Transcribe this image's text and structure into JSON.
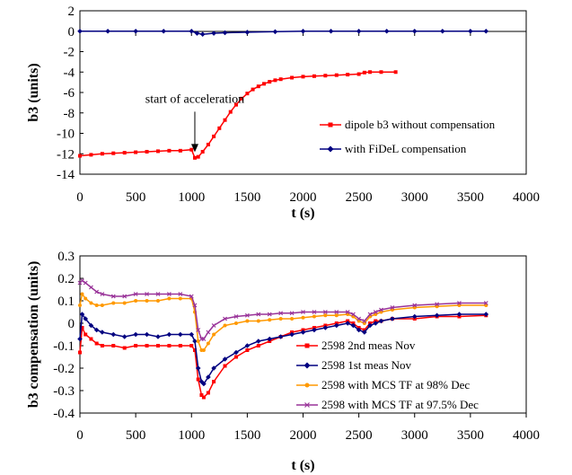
{
  "chart_data": [
    {
      "type": "line",
      "title": "",
      "xlabel": "t (s)",
      "ylabel": "b3 (units)",
      "xlim": [
        0,
        4000
      ],
      "ylim": [
        -14,
        2
      ],
      "xticks": [
        0,
        500,
        1000,
        1500,
        2000,
        2500,
        3000,
        3500,
        4000
      ],
      "yticks": [
        2,
        0,
        -2,
        -4,
        -6,
        -8,
        -10,
        -12,
        -14
      ],
      "grid": false,
      "legend_position": "right",
      "annotations": [
        {
          "text": "start of acceleration",
          "x": 1030,
          "y": -12.1
        }
      ],
      "series": [
        {
          "name": "dipole b3 without compensation",
          "color": "#ff0000",
          "marker": "square",
          "x": [
            0,
            100,
            200,
            300,
            400,
            500,
            600,
            700,
            800,
            900,
            1000,
            1030,
            1060,
            1100,
            1150,
            1200,
            1250,
            1300,
            1350,
            1400,
            1450,
            1500,
            1550,
            1600,
            1650,
            1700,
            1750,
            1800,
            1900,
            2000,
            2100,
            2200,
            2300,
            2400,
            2500,
            2550,
            2600,
            2700,
            2830
          ],
          "y": [
            -12.2,
            -12.1,
            -12.0,
            -11.95,
            -11.9,
            -11.85,
            -11.8,
            -11.75,
            -11.7,
            -11.7,
            -11.6,
            -12.4,
            -12.3,
            -11.8,
            -11.1,
            -10.3,
            -9.5,
            -8.7,
            -7.9,
            -7.2,
            -6.6,
            -6.1,
            -5.7,
            -5.4,
            -5.15,
            -4.95,
            -4.8,
            -4.7,
            -4.55,
            -4.45,
            -4.4,
            -4.35,
            -4.3,
            -4.25,
            -4.2,
            -4.05,
            -4.0,
            -4.0,
            -4.0
          ]
        },
        {
          "name": "with FiDeL compensation",
          "color": "#000080",
          "marker": "diamond",
          "x": [
            0,
            250,
            500,
            750,
            1000,
            1050,
            1100,
            1200,
            1300,
            1500,
            1750,
            2000,
            2250,
            2500,
            2750,
            3000,
            3250,
            3500,
            3640
          ],
          "y": [
            0.0,
            0.0,
            0.0,
            0.0,
            0.0,
            -0.2,
            -0.3,
            -0.2,
            -0.15,
            -0.1,
            -0.05,
            0.0,
            0.0,
            0.0,
            0.0,
            0.0,
            0.0,
            0.0,
            0.0
          ]
        }
      ]
    },
    {
      "type": "line",
      "title": "",
      "xlabel": "t (s)",
      "ylabel": "b3 compensation (units)",
      "xlim": [
        0,
        4000
      ],
      "ylim": [
        -0.4,
        0.3
      ],
      "xticks": [
        0,
        500,
        1000,
        1500,
        2000,
        2500,
        3000,
        3500,
        4000
      ],
      "yticks": [
        0.3,
        0.2,
        0.1,
        0,
        -0.1,
        -0.2,
        -0.3,
        -0.4
      ],
      "ytick_labels": [
        "0.3",
        "0.2",
        "0.1",
        "0",
        "-0.1",
        "-0.2",
        "-0.3",
        "-0.4"
      ],
      "grid": false,
      "legend_position": "lower-right",
      "series": [
        {
          "name": "2598 2nd meas Nov",
          "color": "#ff0000",
          "marker": "square",
          "x": [
            0,
            20,
            50,
            100,
            150,
            200,
            300,
            400,
            500,
            600,
            700,
            800,
            900,
            1000,
            1030,
            1060,
            1090,
            1110,
            1150,
            1200,
            1300,
            1400,
            1500,
            1600,
            1700,
            1800,
            1900,
            2000,
            2100,
            2200,
            2300,
            2400,
            2450,
            2500,
            2550,
            2600,
            2650,
            2700,
            2800,
            3000,
            3200,
            3400,
            3640
          ],
          "y": [
            -0.13,
            -0.02,
            -0.05,
            -0.07,
            -0.09,
            -0.1,
            -0.1,
            -0.11,
            -0.1,
            -0.1,
            -0.1,
            -0.1,
            -0.1,
            -0.1,
            -0.12,
            -0.25,
            -0.32,
            -0.33,
            -0.31,
            -0.26,
            -0.19,
            -0.15,
            -0.12,
            -0.1,
            -0.08,
            -0.06,
            -0.04,
            -0.03,
            -0.02,
            -0.01,
            0.0,
            0.01,
            0.0,
            -0.02,
            -0.03,
            0.0,
            0.01,
            0.01,
            0.02,
            0.02,
            0.03,
            0.03,
            0.035
          ]
        },
        {
          "name": "2598 1st meas Nov",
          "color": "#000080",
          "marker": "diamond",
          "x": [
            0,
            20,
            50,
            100,
            150,
            200,
            300,
            400,
            500,
            600,
            700,
            800,
            900,
            1000,
            1030,
            1060,
            1090,
            1110,
            1150,
            1200,
            1300,
            1400,
            1500,
            1600,
            1700,
            1800,
            1900,
            2000,
            2100,
            2200,
            2300,
            2400,
            2450,
            2500,
            2550,
            2600,
            2650,
            2700,
            2800,
            3000,
            3200,
            3400,
            3640
          ],
          "y": [
            -0.07,
            0.04,
            0.02,
            -0.01,
            -0.03,
            -0.04,
            -0.05,
            -0.06,
            -0.05,
            -0.05,
            -0.06,
            -0.05,
            -0.05,
            -0.05,
            -0.08,
            -0.2,
            -0.26,
            -0.27,
            -0.24,
            -0.2,
            -0.16,
            -0.13,
            -0.1,
            -0.08,
            -0.07,
            -0.06,
            -0.05,
            -0.04,
            -0.03,
            -0.02,
            -0.01,
            0.0,
            -0.01,
            -0.03,
            -0.04,
            -0.01,
            0.0,
            0.01,
            0.02,
            0.03,
            0.035,
            0.04,
            0.04
          ]
        },
        {
          "name": "2598 with MCS TF at 98% Dec",
          "color": "#ff9900",
          "marker": "circle",
          "x": [
            0,
            20,
            50,
            100,
            150,
            200,
            300,
            400,
            500,
            600,
            700,
            800,
            900,
            1000,
            1030,
            1060,
            1090,
            1110,
            1150,
            1200,
            1300,
            1400,
            1500,
            1600,
            1700,
            1800,
            1900,
            2000,
            2100,
            2200,
            2300,
            2400,
            2450,
            2500,
            2550,
            2600,
            2650,
            2700,
            2800,
            3000,
            3200,
            3400,
            3640
          ],
          "y": [
            0.08,
            0.13,
            0.11,
            0.09,
            0.08,
            0.08,
            0.09,
            0.09,
            0.1,
            0.1,
            0.1,
            0.11,
            0.11,
            0.11,
            0.05,
            -0.08,
            -0.12,
            -0.12,
            -0.09,
            -0.05,
            -0.01,
            0.0,
            0.01,
            0.01,
            0.015,
            0.02,
            0.02,
            0.025,
            0.03,
            0.035,
            0.035,
            0.04,
            0.03,
            0.01,
            0.0,
            0.03,
            0.04,
            0.05,
            0.06,
            0.07,
            0.075,
            0.08,
            0.08
          ]
        },
        {
          "name": "2598 with MCS TF at 97.5% Dec",
          "color": "#993399",
          "marker": "cross",
          "x": [
            0,
            20,
            50,
            100,
            150,
            200,
            300,
            400,
            500,
            600,
            700,
            800,
            900,
            1000,
            1030,
            1060,
            1090,
            1110,
            1150,
            1200,
            1300,
            1400,
            1500,
            1600,
            1700,
            1800,
            1900,
            2000,
            2100,
            2200,
            2300,
            2400,
            2450,
            2500,
            2550,
            2600,
            2650,
            2700,
            2800,
            3000,
            3200,
            3400,
            3640
          ],
          "y": [
            0.18,
            0.19,
            0.18,
            0.16,
            0.14,
            0.13,
            0.12,
            0.12,
            0.13,
            0.13,
            0.13,
            0.13,
            0.13,
            0.12,
            0.08,
            -0.03,
            -0.07,
            -0.07,
            -0.04,
            -0.01,
            0.02,
            0.03,
            0.035,
            0.04,
            0.04,
            0.045,
            0.045,
            0.05,
            0.05,
            0.05,
            0.05,
            0.05,
            0.04,
            0.02,
            0.01,
            0.04,
            0.05,
            0.06,
            0.07,
            0.08,
            0.085,
            0.09,
            0.09
          ]
        }
      ]
    }
  ]
}
